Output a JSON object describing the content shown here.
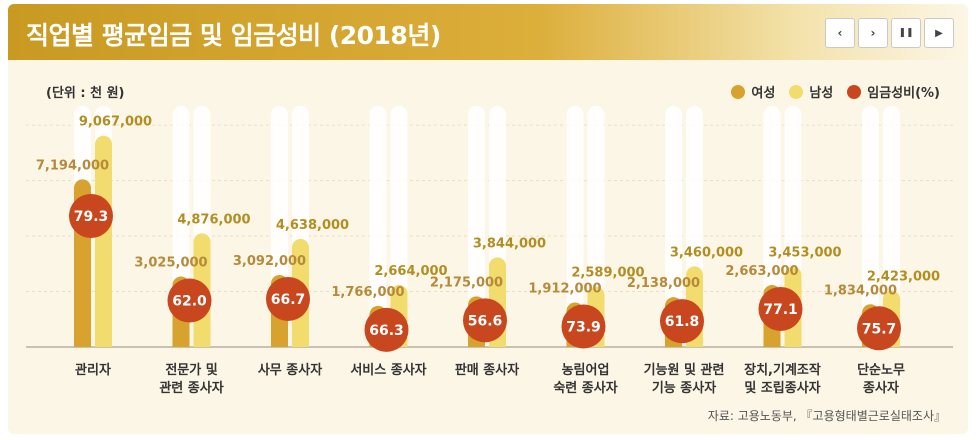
{
  "header": {
    "title": "직업별 평균임금 및 임금성비 (2018년)",
    "controls": {
      "prev_icon": "‹",
      "next_icon": "›",
      "pause_icon": "❚❚",
      "play_icon": "▶"
    }
  },
  "unit_label": "(단위 : 천 원)",
  "legend": [
    {
      "label": "여성",
      "color": "#d8a22f"
    },
    {
      "label": "남성",
      "color": "#f3dc6e"
    },
    {
      "label": "임금성비(%)",
      "color": "#c8471f"
    }
  ],
  "source": "자료: 고용노동부, 『고용형태별근로실태조사』",
  "colors": {
    "female_bar": "#d8a22f",
    "male_bar": "#f3dc6e",
    "ratio": "#c8471f",
    "female_label": "#b58a3a",
    "male_label": "#b28e22"
  },
  "chart_data": {
    "type": "bar",
    "categories": [
      [
        "관리자"
      ],
      [
        "전문가 및",
        "관련 종사자"
      ],
      [
        "사무 종사자"
      ],
      [
        "서비스 종사자"
      ],
      [
        "판매 종사자"
      ],
      [
        "농림어업",
        "숙련 종사자"
      ],
      [
        "기능원 및 관련",
        "기능 종사자"
      ],
      [
        "장치,기계조작",
        "및 조립종사자"
      ],
      [
        "단순노무",
        "종사자"
      ]
    ],
    "series": [
      {
        "name": "여성",
        "values": [
          7194000,
          3025000,
          3092000,
          1766000,
          2175000,
          1912000,
          2138000,
          2663000,
          1834000
        ],
        "labels": [
          "7,194,000",
          "3,025,000",
          "3,092,000",
          "1,766,000",
          "2,175,000",
          "1,912,000",
          "2,138,000",
          "2,663,000",
          "1,834,000"
        ]
      },
      {
        "name": "남성",
        "values": [
          9067000,
          4876000,
          4638000,
          2664000,
          3844000,
          2589000,
          3460000,
          3453000,
          2423000
        ],
        "labels": [
          "9,067,000",
          "4,876,000",
          "4,638,000",
          "2,664,000",
          "3,844,000",
          "2,589,000",
          "3,460,000",
          "3,453,000",
          "2,423,000"
        ]
      },
      {
        "name": "임금성비(%)",
        "values": [
          79.3,
          62.0,
          66.7,
          66.3,
          56.6,
          73.9,
          61.8,
          77.1,
          75.7
        ],
        "labels": [
          "79.3",
          "62.0",
          "66.7",
          "66.3",
          "56.6",
          "73.9",
          "61.8",
          "77.1",
          "75.7"
        ]
      }
    ],
    "ylim": [
      0,
      10000000
    ],
    "grid": true,
    "legend_position": "top-right"
  }
}
